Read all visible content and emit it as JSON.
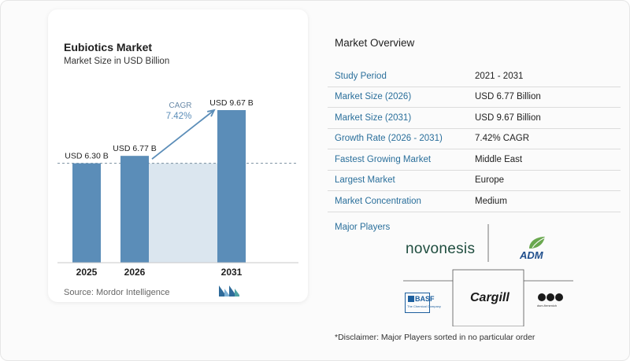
{
  "chart_title": "Eubiotics Market",
  "chart_subtitle": "Market Size in USD Billion",
  "source": "Source:  Mordor Intelligence",
  "colors": {
    "bar": "#5b8db8",
    "band": "#dbe6ef",
    "accent": "#5b8db8",
    "label_blue": "#2a6f9b"
  },
  "chart_data": {
    "type": "bar",
    "title": "Eubiotics Market",
    "subtitle": "Market Size in USD Billion",
    "categories": [
      "2025",
      "2026",
      "2031"
    ],
    "values": [
      6.3,
      6.77,
      9.67
    ],
    "value_labels": [
      "USD 6.30 B",
      "USD 6.77 B",
      "USD 9.67 B"
    ],
    "unit": "USD Billion",
    "ylim": [
      0,
      9.67
    ],
    "reference_line": 6.3,
    "cagr_label": "CAGR",
    "cagr_value": "7.42%",
    "grid": false,
    "legend": "none"
  },
  "overview": {
    "title": "Market Overview",
    "rows": [
      {
        "label": "Study Period",
        "value": "2021 - 2031"
      },
      {
        "label": "Market Size (2026)",
        "value": "USD 6.77 Billion"
      },
      {
        "label": "Market Size (2031)",
        "value": "USD 9.67 Billion"
      },
      {
        "label": "Growth Rate (2026 - 2031)",
        "value": "7.42% CAGR"
      },
      {
        "label": "Fastest Growing Market",
        "value": "Middle East"
      },
      {
        "label": "Largest Market",
        "value": "Europe"
      },
      {
        "label": "Market Concentration",
        "value": "Medium"
      }
    ]
  },
  "players": {
    "title": "Major Players",
    "logos": [
      "novonesis",
      "ADM",
      "BASF",
      "The Chemical Company",
      "Cargill",
      "dsm-firmenich"
    ]
  },
  "disclaimer": "*Disclaimer: Major Players sorted in no particular order"
}
